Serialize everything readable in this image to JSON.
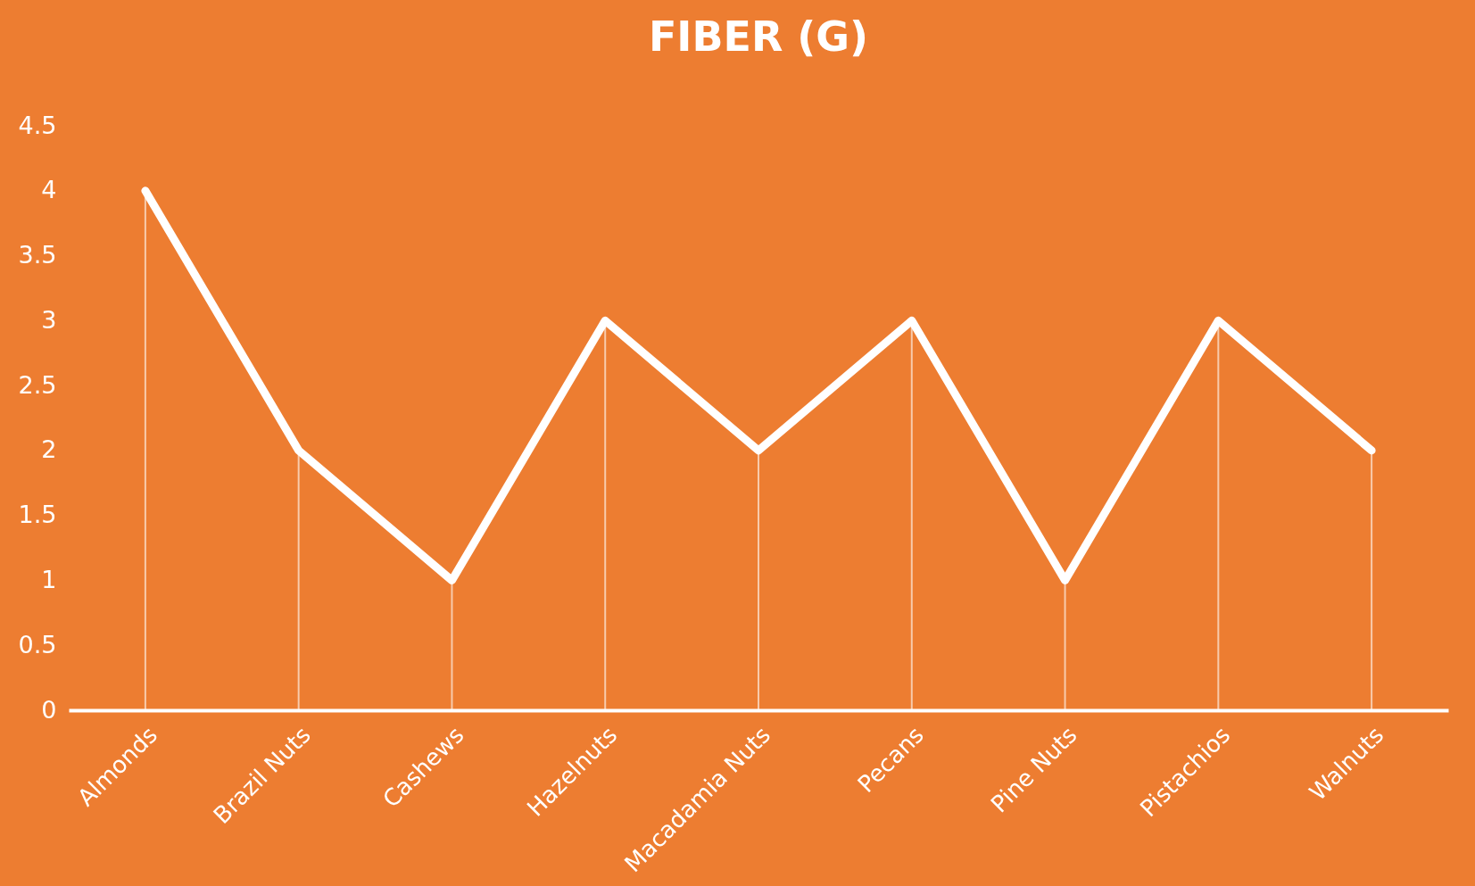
{
  "chart_data": {
    "type": "line",
    "title": "FIBER (G)",
    "categories": [
      "Almonds",
      "Brazil Nuts",
      "Cashews",
      "Hazelnuts",
      "Macadamia Nuts",
      "Pecans",
      "Pine Nuts",
      "Pistachios",
      "Walnuts"
    ],
    "series": [
      {
        "color": "#ffffff",
        "values": [
          4,
          2,
          1,
          3,
          2,
          3,
          1,
          3,
          2
        ],
        "errors": [
          [
            0,
            4
          ],
          [
            0,
            2
          ],
          [
            0,
            1
          ],
          [
            0,
            3
          ],
          [
            0,
            2
          ],
          [
            0,
            3
          ],
          [
            0,
            1
          ],
          [
            0,
            3
          ],
          [
            0,
            2
          ]
        ]
      }
    ],
    "ylim": [
      0,
      4.5
    ],
    "yticks": [
      0,
      0.5,
      1,
      1.5,
      2,
      2.5,
      3,
      3.5,
      4,
      4.5
    ],
    "grid": false,
    "line_style": "solid"
  }
}
